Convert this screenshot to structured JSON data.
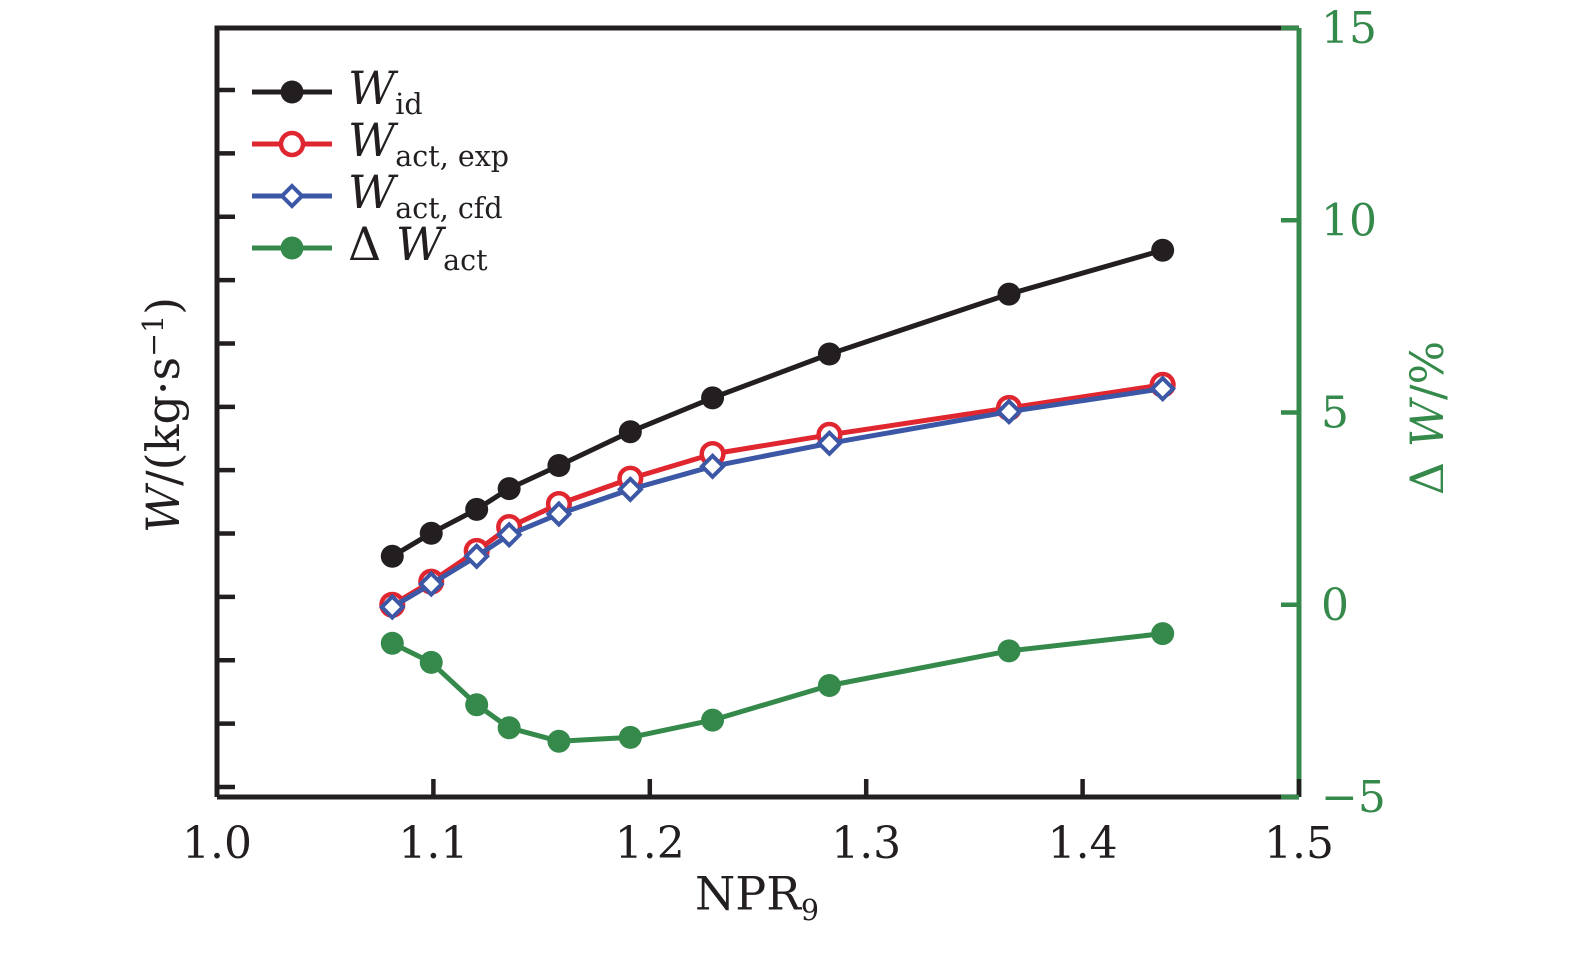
{
  "figure": {
    "background": "#ffffff",
    "colors": {
      "axis": "#231f20",
      "text": "#231f20",
      "right_axis": "#35894b",
      "series_black": "#231f20",
      "series_red": "#e02730",
      "series_blue": "#3c57a5",
      "series_green": "#35894b"
    }
  },
  "labels": {
    "x": {
      "main": "NPR",
      "sub": "9"
    },
    "y_left": {
      "w": "W",
      "mid": "/(kg·s",
      "sup": "−1",
      "end": ")"
    },
    "y_right": {
      "delta": "Δ ",
      "w": "W",
      "rest": "/%"
    }
  },
  "legend": {
    "items": [
      {
        "prefix": "",
        "main": "W",
        "sub": "id",
        "color": "#231f20",
        "marker": "circle-filled"
      },
      {
        "prefix": "",
        "main": "W",
        "sub": "act, exp",
        "color": "#e02730",
        "marker": "circle-open"
      },
      {
        "prefix": "",
        "main": "W",
        "sub": "act, cfd",
        "color": "#3c57a5",
        "marker": "diamond-open"
      },
      {
        "prefix": "Δ ",
        "main": "W",
        "sub": "act",
        "color": "#35894b",
        "marker": "circle-filled"
      }
    ]
  },
  "chart_data": {
    "type": "line",
    "title": "",
    "xlabel": "NPR9",
    "ylabel_left": "W/(kg·s−1)",
    "ylabel_right": "ΔW/%",
    "x_range": [
      1.0,
      1.5
    ],
    "x_ticks": {
      "values": [
        1.0,
        1.1,
        1.2,
        1.3,
        1.4,
        1.5
      ],
      "labels": [
        "1.0",
        "1.1",
        "1.2",
        "1.3",
        "1.4",
        "1.5"
      ]
    },
    "y_left_axis": {
      "numeric_labels": false,
      "unlabeled_tick_count": 12,
      "note": "left axis has unlabeled tick marks only; W series values are stored as fraction of plot height above the bottom axis"
    },
    "y_right_axis": {
      "range": [
        -5,
        15
      ],
      "tick_values": [
        15,
        10,
        5,
        0,
        -5
      ],
      "tick_labels": [
        "15",
        "10",
        "5",
        "0",
        "−5"
      ],
      "color": "#35894b"
    },
    "x": [
      1.081,
      1.099,
      1.12,
      1.135,
      1.158,
      1.191,
      1.229,
      1.283,
      1.366,
      1.437
    ],
    "series": [
      {
        "name": "W_id",
        "axis": "left",
        "color": "#231f20",
        "marker": "circle-filled",
        "line": "solid",
        "y_frac": [
          0.313,
          0.343,
          0.374,
          0.401,
          0.431,
          0.475,
          0.519,
          0.576,
          0.654,
          0.711
        ]
      },
      {
        "name": "W_act, exp",
        "axis": "left",
        "color": "#e02730",
        "marker": "circle-open",
        "line": "solid",
        "y_frac": [
          0.25,
          0.28,
          0.32,
          0.351,
          0.381,
          0.414,
          0.446,
          0.471,
          0.506,
          0.536
        ]
      },
      {
        "name": "W_act, cfd",
        "axis": "left",
        "color": "#3c57a5",
        "marker": "diamond-open",
        "line": "solid",
        "y_frac": [
          0.247,
          0.277,
          0.313,
          0.341,
          0.368,
          0.4,
          0.43,
          0.46,
          0.501,
          0.531
        ]
      },
      {
        "name": "ΔW_act",
        "axis": "right",
        "color": "#35894b",
        "marker": "circle-filled",
        "line": "solid",
        "percent": [
          -1.0,
          -1.5,
          -2.6,
          -3.2,
          -3.55,
          -3.45,
          -3.0,
          -2.1,
          -1.2,
          -0.75
        ]
      }
    ],
    "legend_position": "upper-left-inside",
    "grid": false
  }
}
